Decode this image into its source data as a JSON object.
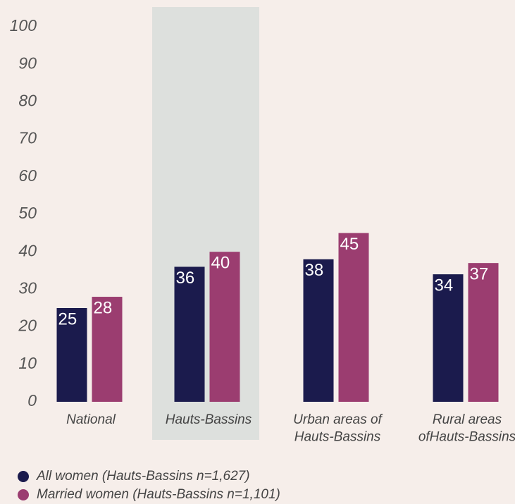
{
  "chart_data": {
    "type": "bar",
    "categories": [
      "National",
      "Hauts-Bassins",
      "Urban areas of\nHauts-Bassins",
      "Rural areas\nofHauts-Bassins"
    ],
    "series": [
      {
        "name": "All women (Hauts-Bassins n=1,627)",
        "color": "#1b1b4d",
        "values": [
          25,
          36,
          38,
          34
        ]
      },
      {
        "name": "Married women (Hauts-Bassins n=1,101)",
        "color": "#9b3d70",
        "values": [
          28,
          40,
          45,
          37
        ]
      }
    ],
    "ylim": [
      0,
      100
    ],
    "yticks": [
      0,
      10,
      20,
      30,
      40,
      50,
      60,
      70,
      80,
      90,
      100
    ],
    "grid": false,
    "legend": "bottom"
  }
}
